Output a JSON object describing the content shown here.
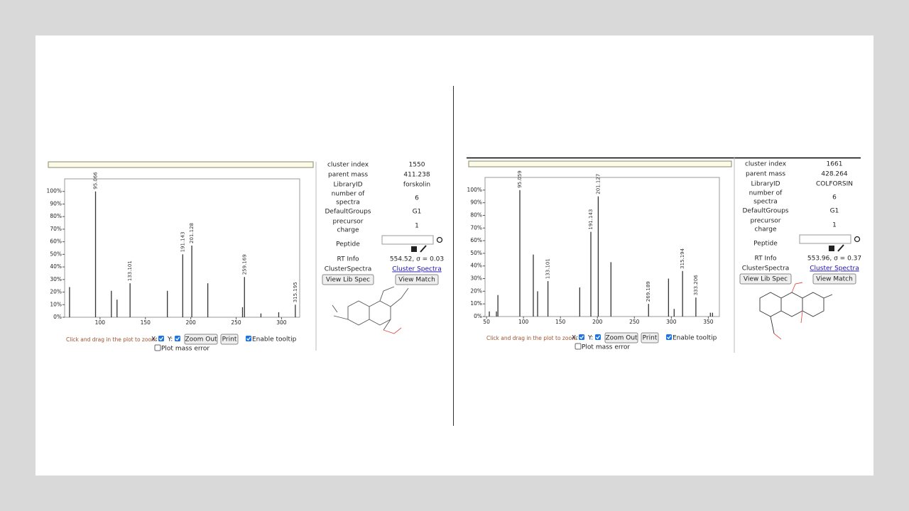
{
  "chart_data": [
    {
      "type": "stem",
      "color": "#333333",
      "x": [
        66.4,
        95.066,
        112.5,
        118.75,
        133.101,
        174.2,
        191.143,
        201.128,
        218.75,
        257.0,
        259.169,
        277.3,
        296.9,
        315.195
      ],
      "values": [
        24,
        100,
        21,
        14,
        27,
        21,
        50,
        57,
        27,
        8,
        32,
        3,
        4,
        10
      ],
      "peak_labels": [
        null,
        "95.066",
        null,
        null,
        "133.101",
        null,
        "191.143",
        "201.128",
        null,
        null,
        "259.169",
        null,
        null,
        "315.195"
      ],
      "xlim": [
        61,
        320
      ],
      "ylim": [
        0,
        110
      ],
      "xticks": [
        100,
        150,
        200,
        250,
        300
      ],
      "yticks": [
        {
          "value": 0,
          "label": "0%"
        },
        {
          "value": 10,
          "label": "10%"
        },
        {
          "value": 20,
          "label": "20%"
        },
        {
          "value": 30,
          "label": "30%"
        },
        {
          "value": 40,
          "label": "40%"
        },
        {
          "value": 50,
          "label": "50%"
        },
        {
          "value": 60,
          "label": "60%"
        },
        {
          "value": 70,
          "label": "70%"
        },
        {
          "value": 80,
          "label": "80%"
        },
        {
          "value": 90,
          "label": "90%"
        },
        {
          "value": 100,
          "label": "100%"
        }
      ]
    },
    {
      "type": "stem",
      "color": "#333333",
      "x": [
        53.8,
        63.4,
        65.4,
        95.059,
        113.3,
        119.1,
        133.101,
        176.1,
        191.143,
        201.127,
        218.3,
        269.189,
        296.2,
        303.8,
        315.194,
        333.206,
        352.8,
        355.7
      ],
      "values": [
        4,
        4,
        17,
        100,
        49,
        20,
        28,
        23,
        67,
        95,
        43,
        10,
        30,
        6,
        36,
        15,
        3,
        3
      ],
      "peak_labels": [
        null,
        null,
        null,
        "95.059",
        null,
        null,
        "133.101",
        null,
        "191.143",
        "201.127",
        null,
        "269.189",
        null,
        null,
        "315.194",
        "333.206",
        null,
        null
      ],
      "xlim": [
        48,
        365
      ],
      "ylim": [
        0,
        110
      ],
      "xticks": [
        50,
        100,
        150,
        200,
        250,
        300,
        350
      ],
      "yticks": [
        {
          "value": 0,
          "label": "0%"
        },
        {
          "value": 10,
          "label": "10%"
        },
        {
          "value": 20,
          "label": "20%"
        },
        {
          "value": 30,
          "label": "30%"
        },
        {
          "value": 40,
          "label": "40%"
        },
        {
          "value": 50,
          "label": "50%"
        },
        {
          "value": 60,
          "label": "60%"
        },
        {
          "value": 70,
          "label": "70%"
        },
        {
          "value": 80,
          "label": "80%"
        },
        {
          "value": 90,
          "label": "90%"
        },
        {
          "value": 100,
          "label": "100%"
        }
      ]
    }
  ],
  "panels": [
    {
      "info": [
        {
          "label": [
            "cluster index"
          ],
          "value": "1550"
        },
        {
          "label": [
            "parent mass"
          ],
          "value": "411.238"
        },
        {
          "label": [
            "LibraryID"
          ],
          "value": "forskolin"
        },
        {
          "label": [
            "number of",
            "spectra"
          ],
          "value": "6"
        },
        {
          "label": [
            "DefaultGroups"
          ],
          "value": "G1"
        },
        {
          "label": [
            "precursor",
            "charge"
          ],
          "value": "1"
        }
      ],
      "peptide": "Peptide",
      "rt_label": "RT Info",
      "rt_value": "554.52, σ = 0.03",
      "cluster_label": "ClusterSpectra",
      "cluster_link": "Cluster Spectra",
      "lib_button": "View Lib Spec",
      "match_button": "View Match",
      "zoom_hint": "Click and drag in the plot to zoom",
      "x_toggle": "X:",
      "y_toggle": "Y:",
      "zoom_out": "Zoom Out",
      "print": "Print",
      "tooltip": "Enable tooltip",
      "mass_error": "Plot mass error"
    },
    {
      "info": [
        {
          "label": [
            "cluster index"
          ],
          "value": "1661"
        },
        {
          "label": [
            "parent mass"
          ],
          "value": "428.264"
        },
        {
          "label": [
            "LibraryID"
          ],
          "value": "COLFORSIN"
        },
        {
          "label": [
            "number of",
            "spectra"
          ],
          "value": "6"
        },
        {
          "label": [
            "DefaultGroups"
          ],
          "value": "G1"
        },
        {
          "label": [
            "precursor",
            "charge"
          ],
          "value": "1"
        }
      ],
      "peptide": "Peptide",
      "rt_label": "RT Info",
      "rt_value": "553.96, σ = 0.37",
      "cluster_label": "ClusterSpectra",
      "cluster_link": "Cluster Spectra",
      "lib_button": "View Lib Spec",
      "match_button": "View Match",
      "zoom_hint": "Click and drag in the plot to zoom",
      "x_toggle": "X:",
      "y_toggle": "Y:",
      "zoom_out": "Zoom Out",
      "print": "Print",
      "tooltip": "Enable tooltip",
      "mass_error": "Plot mass error"
    }
  ]
}
